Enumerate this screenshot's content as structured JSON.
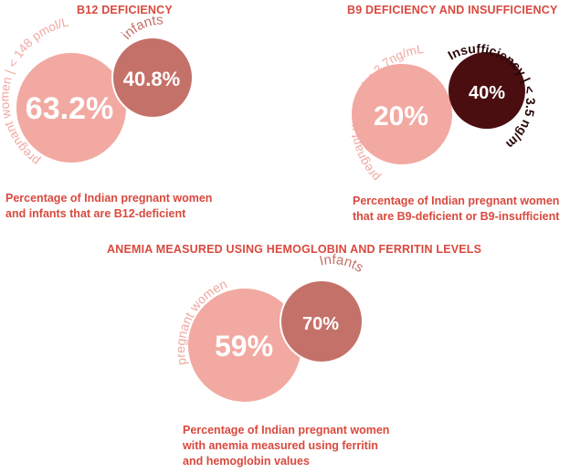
{
  "colors": {
    "title": "#d9493e",
    "pink_circle": "#f2a9a2",
    "rose_circle": "#c4716a",
    "dark_circle": "#4a0e11",
    "pink_label": "#f0a7a0",
    "dark_label": "#2a0808",
    "rose_label": "#c4716a"
  },
  "chart_data": [
    {
      "type": "bubble",
      "title": "B12 DEFICIENCY",
      "caption": [
        "Percentage of Indian pregnant women",
        "and infants that are B12-deficient"
      ],
      "series": [
        {
          "name": "pregnant women | < 148 pmol/L",
          "value": 63.2,
          "label": "63.2%"
        },
        {
          "name": "infants",
          "value": 40.8,
          "label": "40.8%"
        }
      ]
    },
    {
      "type": "bubble",
      "title": "B9 DEFICIENCY AND INSUFFICIENCY",
      "caption": [
        "Percentage of Indian pregnant women",
        "that are B9-deficient or B9-insufficient"
      ],
      "series": [
        {
          "name": "pregnant women | < 2.7ng/mL",
          "value": 20,
          "label": "20%"
        },
        {
          "name": "Insufficiency | < 3.5 ng/mL",
          "value": 40,
          "label": "40%"
        }
      ]
    },
    {
      "type": "bubble",
      "title": "ANEMIA MEASURED USING HEMOGLOBIN AND FERRITIN LEVELS",
      "caption": [
        "Percentage of Indian pregnant women",
        "with anemia measured using ferritin",
        "and hemoglobin values"
      ],
      "series": [
        {
          "name": "pregnant women",
          "value": 59,
          "label": "59%"
        },
        {
          "name": "Infants",
          "value": 70,
          "label": "70%"
        }
      ]
    }
  ]
}
